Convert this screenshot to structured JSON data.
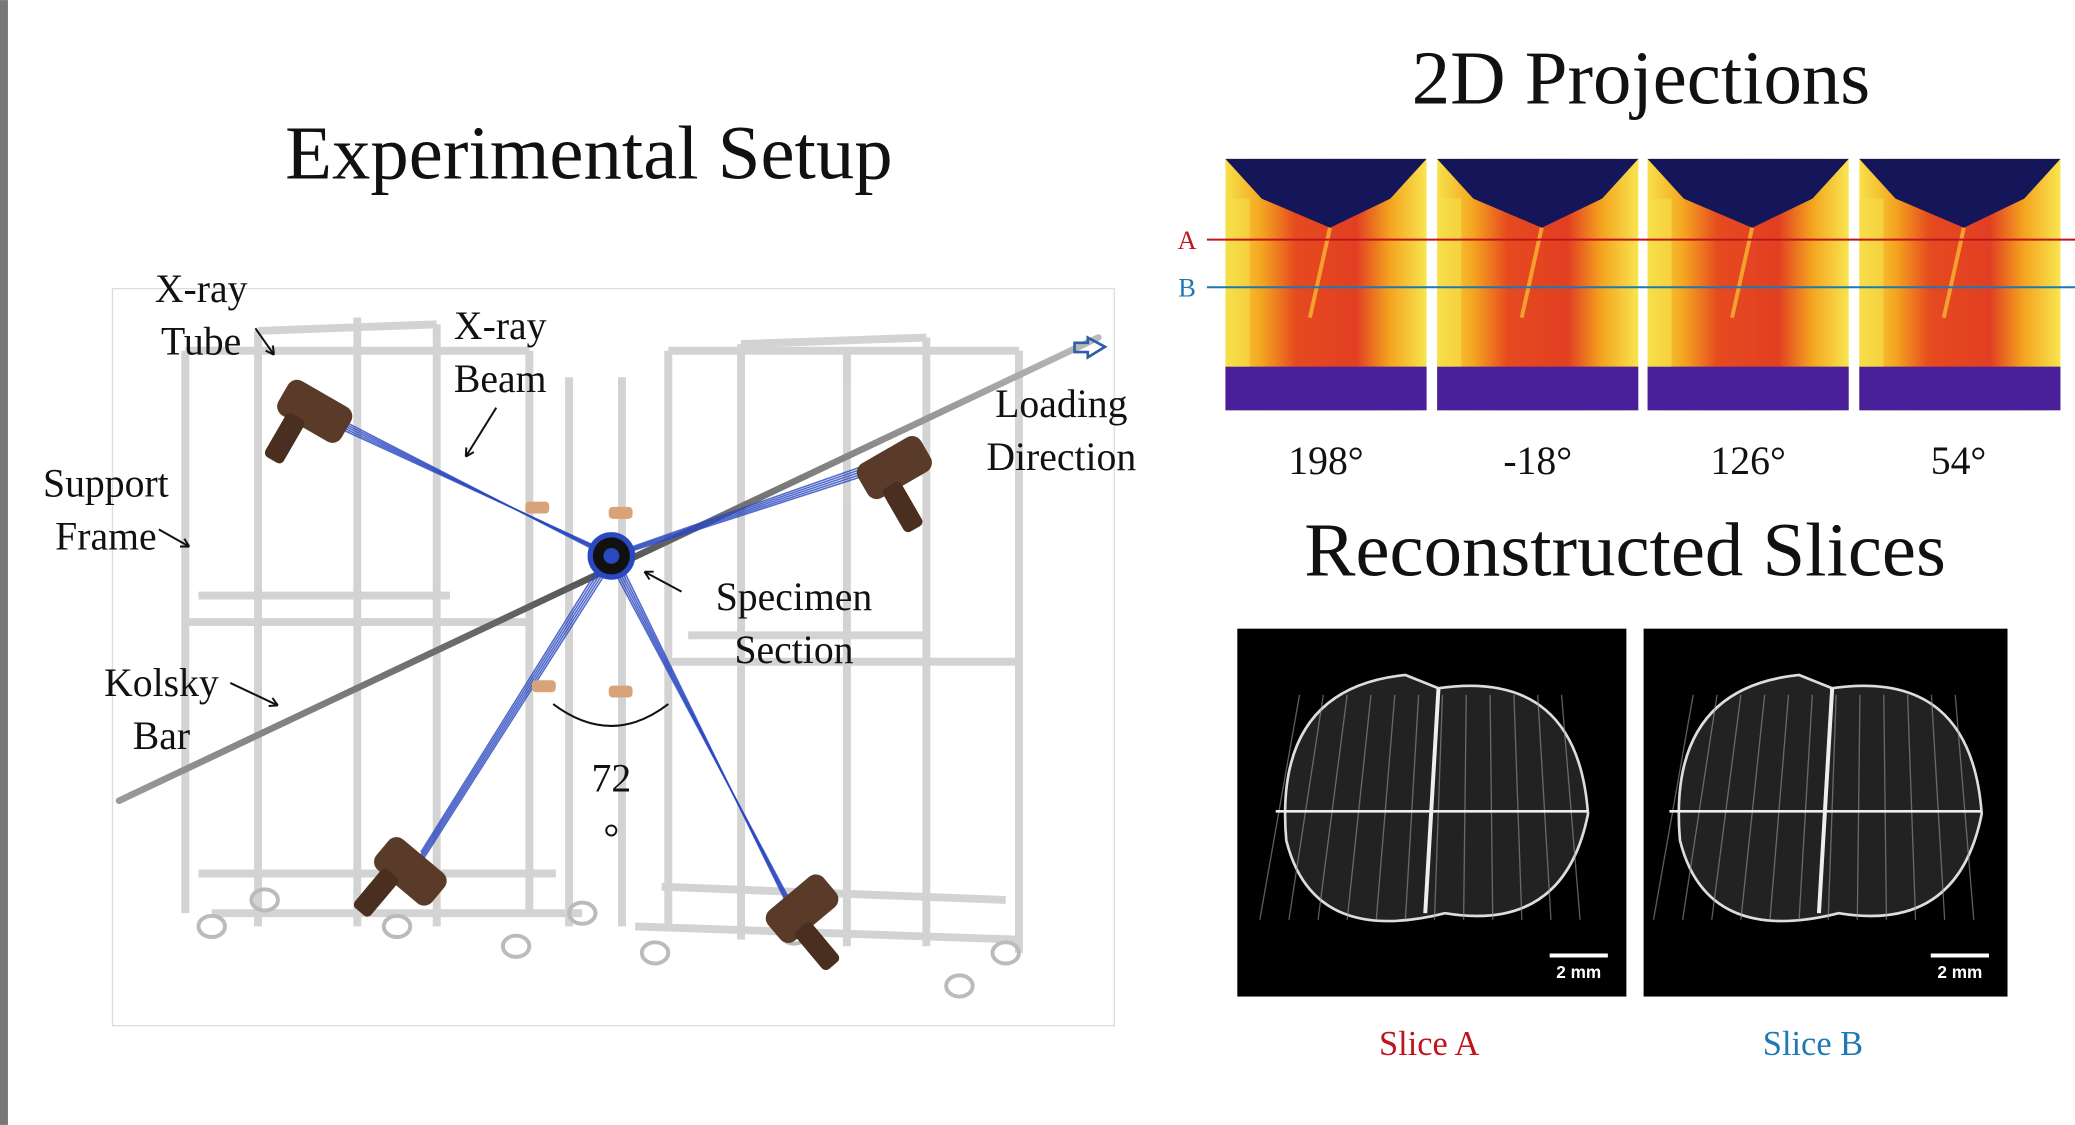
{
  "setup": {
    "title": "Experimental Setup",
    "labels": [
      {
        "lines": [
          "X-ray",
          "Tube"
        ]
      },
      {
        "lines": [
          "X-ray",
          "Beam"
        ]
      },
      {
        "lines": [
          "Loading",
          "Direction"
        ]
      },
      {
        "lines": [
          "Support",
          "Frame"
        ]
      },
      {
        "lines": [
          "Specimen",
          "Section"
        ]
      },
      {
        "lines": [
          "Kolsky",
          "Bar"
        ]
      },
      {
        "lines": [
          "72",
          "°"
        ]
      }
    ]
  },
  "projections": {
    "title": "2D Projections",
    "line_labels": [
      "A",
      "B"
    ],
    "angles": [
      "198°",
      "-18°",
      "126°",
      "54°"
    ]
  },
  "slices": {
    "title": "Reconstructed Slices",
    "items": [
      {
        "scale": "2 mm",
        "label": "Slice A"
      },
      {
        "scale": "2 mm",
        "label": "Slice B"
      }
    ]
  }
}
